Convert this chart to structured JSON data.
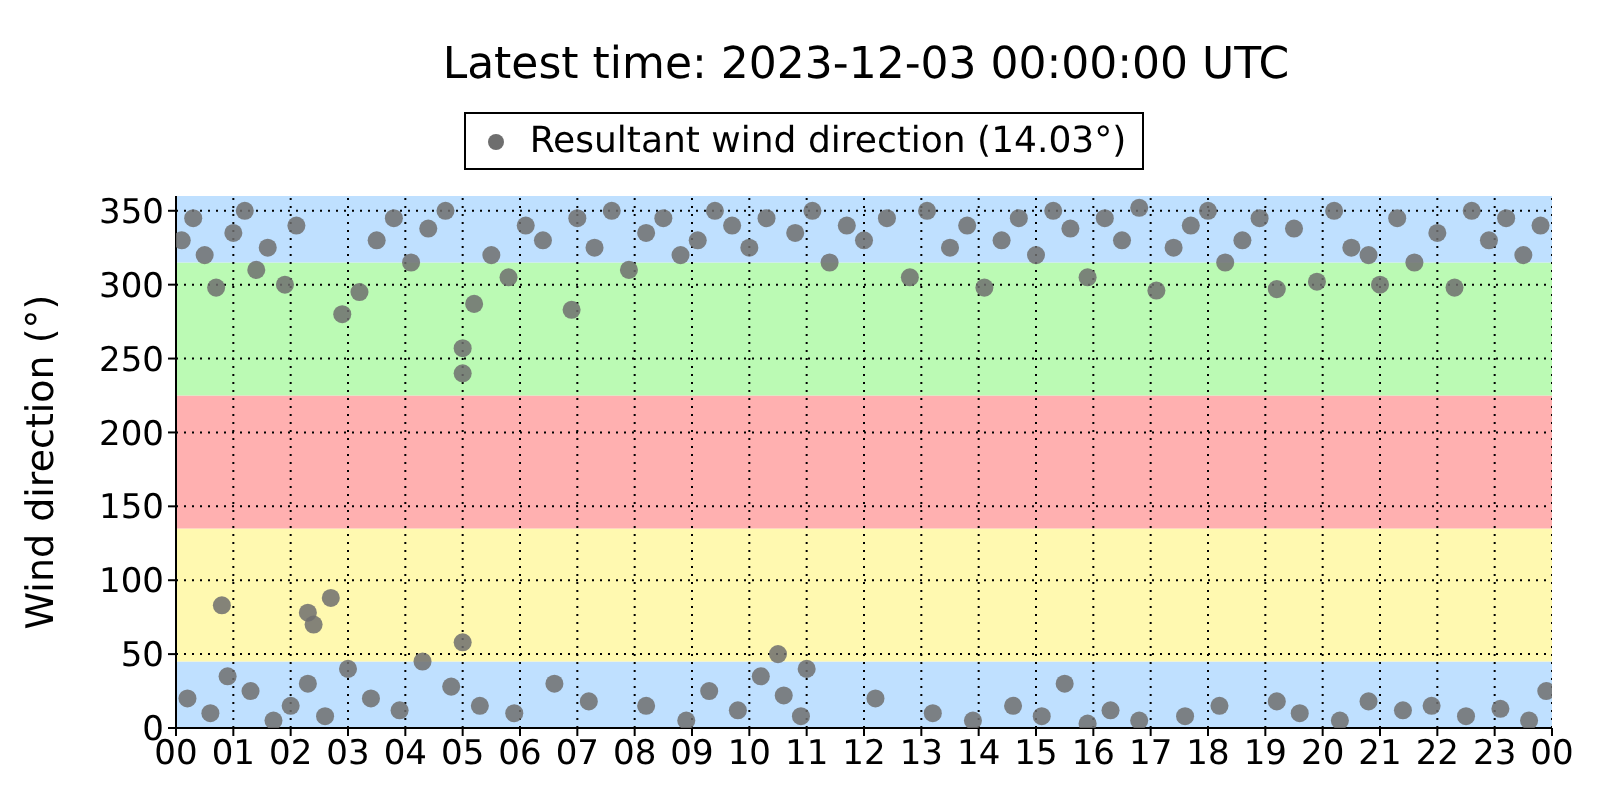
{
  "chart_data": {
    "type": "scatter",
    "title": "Latest time: 2023-12-03 00:00:00 UTC",
    "ylabel": "Wind direction (°)",
    "xlim": [
      0,
      24
    ],
    "ylim": [
      0,
      360
    ],
    "xticks": [
      {
        "value": 0,
        "label": "00"
      },
      {
        "value": 1,
        "label": "01"
      },
      {
        "value": 2,
        "label": "02"
      },
      {
        "value": 3,
        "label": "03"
      },
      {
        "value": 4,
        "label": "04"
      },
      {
        "value": 5,
        "label": "05"
      },
      {
        "value": 6,
        "label": "06"
      },
      {
        "value": 7,
        "label": "07"
      },
      {
        "value": 8,
        "label": "08"
      },
      {
        "value": 9,
        "label": "09"
      },
      {
        "value": 10,
        "label": "10"
      },
      {
        "value": 11,
        "label": "11"
      },
      {
        "value": 12,
        "label": "12"
      },
      {
        "value": 13,
        "label": "13"
      },
      {
        "value": 14,
        "label": "14"
      },
      {
        "value": 15,
        "label": "15"
      },
      {
        "value": 16,
        "label": "16"
      },
      {
        "value": 17,
        "label": "17"
      },
      {
        "value": 18,
        "label": "18"
      },
      {
        "value": 19,
        "label": "19"
      },
      {
        "value": 20,
        "label": "20"
      },
      {
        "value": 21,
        "label": "21"
      },
      {
        "value": 22,
        "label": "22"
      },
      {
        "value": 23,
        "label": "23"
      },
      {
        "value": 24,
        "label": "00"
      }
    ],
    "yticks": [
      0,
      50,
      100,
      150,
      200,
      250,
      300,
      350
    ],
    "grid": true,
    "legend": "top",
    "marker": "circle",
    "bands": [
      {
        "axis": "y",
        "from": 0,
        "to": 45,
        "color": "#bfe0ff"
      },
      {
        "axis": "y",
        "from": 45,
        "to": 135,
        "color": "#fff9b0"
      },
      {
        "axis": "y",
        "from": 135,
        "to": 225,
        "color": "#ffb0b0"
      },
      {
        "axis": "y",
        "from": 225,
        "to": 315,
        "color": "#bbfab4"
      },
      {
        "axis": "y",
        "from": 315,
        "to": 360,
        "color": "#bfe0ff"
      }
    ],
    "series": [
      {
        "name": "Resultant wind direction (14.03°)",
        "color": "#6e6e6e",
        "x": [
          0.1,
          0.3,
          0.5,
          0.7,
          0.8,
          1.0,
          1.2,
          1.4,
          1.6,
          1.9,
          2.1,
          2.3,
          2.4,
          2.7,
          2.9,
          3.2,
          3.5,
          3.8,
          4.1,
          4.4,
          4.7,
          5.0,
          5.0,
          5.0,
          5.2,
          5.5,
          5.8,
          6.1,
          6.4,
          6.9,
          7.0,
          7.3,
          7.6,
          7.9,
          8.2,
          8.5,
          8.8,
          9.1,
          9.4,
          9.7,
          10.0,
          10.3,
          10.5,
          10.8,
          11.1,
          11.4,
          11.7,
          12.0,
          12.4,
          12.8,
          13.1,
          13.5,
          13.8,
          14.1,
          14.4,
          14.7,
          15.0,
          15.3,
          15.6,
          15.9,
          16.2,
          16.5,
          16.8,
          17.1,
          17.4,
          17.7,
          18.0,
          18.3,
          18.6,
          18.9,
          19.2,
          19.5,
          19.9,
          20.2,
          20.5,
          20.8,
          21.0,
          21.3,
          21.6,
          22.0,
          22.3,
          22.6,
          22.9,
          23.2,
          23.5,
          23.8,
          0.2,
          0.6,
          0.9,
          1.3,
          1.7,
          2.0,
          2.3,
          2.6,
          3.0,
          3.4,
          3.9,
          4.3,
          4.8,
          5.3,
          5.9,
          6.6,
          7.2,
          8.2,
          8.9,
          9.3,
          9.8,
          10.2,
          10.6,
          10.9,
          11.0,
          12.2,
          13.2,
          13.9,
          14.6,
          15.1,
          15.5,
          15.9,
          16.3,
          16.8,
          17.6,
          18.2,
          19.2,
          19.6,
          20.3,
          20.8,
          21.4,
          21.9,
          22.5,
          23.1,
          23.6,
          23.9
        ],
        "values": [
          330,
          345,
          320,
          298,
          83,
          335,
          350,
          310,
          325,
          300,
          340,
          78,
          70,
          88,
          280,
          295,
          330,
          345,
          315,
          338,
          350,
          58,
          257,
          240,
          287,
          320,
          305,
          340,
          330,
          283,
          345,
          325,
          350,
          310,
          335,
          345,
          320,
          330,
          350,
          340,
          325,
          345,
          50,
          335,
          350,
          315,
          340,
          330,
          345,
          305,
          350,
          325,
          340,
          298,
          330,
          345,
          320,
          350,
          338,
          305,
          345,
          330,
          352,
          296,
          325,
          340,
          350,
          315,
          330,
          345,
          297,
          338,
          302,
          350,
          325,
          320,
          300,
          345,
          315,
          335,
          298,
          350,
          330,
          345,
          320,
          340,
          20,
          10,
          35,
          25,
          5,
          15,
          30,
          8,
          40,
          20,
          12,
          45,
          28,
          15,
          10,
          30,
          18,
          15,
          5,
          25,
          12,
          35,
          22,
          8,
          40,
          20,
          10,
          5,
          15,
          8,
          30,
          3,
          12,
          5,
          8,
          15,
          18,
          10,
          5,
          18,
          12,
          15,
          8,
          13,
          5,
          25
        ]
      }
    ]
  }
}
